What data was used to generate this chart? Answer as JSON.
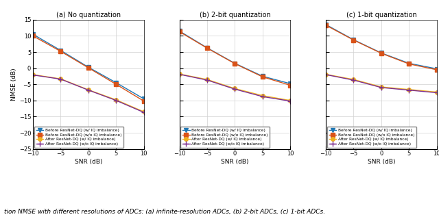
{
  "snr": [
    -10,
    -5,
    0,
    5,
    10
  ],
  "subplot1": {
    "title": "(a) No quantization",
    "before_w": [
      10.5,
      5.5,
      0.3,
      -4.5,
      -9.5
    ],
    "before_wo": [
      10.0,
      5.2,
      0.1,
      -5.0,
      -10.2
    ],
    "after_w": [
      -2.0,
      -3.3,
      -6.7,
      -9.8,
      -13.5
    ],
    "after_wo": [
      -2.1,
      -3.4,
      -6.8,
      -10.0,
      -13.7
    ]
  },
  "subplot2": {
    "title": "(b) 2-bit quantization",
    "before_w": [
      11.5,
      6.3,
      1.5,
      -2.5,
      -4.8
    ],
    "before_wo": [
      11.3,
      6.2,
      1.4,
      -2.7,
      -5.3
    ],
    "after_w": [
      -1.8,
      -3.5,
      -6.3,
      -8.5,
      -10.0
    ],
    "after_wo": [
      -1.9,
      -3.7,
      -6.5,
      -8.8,
      -10.2
    ]
  },
  "subplot3": {
    "title": "(c) 1-bit quantization",
    "before_w": [
      13.5,
      8.8,
      4.7,
      1.5,
      -0.2
    ],
    "before_wo": [
      13.3,
      8.7,
      4.6,
      1.3,
      -0.5
    ],
    "after_w": [
      -1.9,
      -3.5,
      -5.8,
      -6.6,
      -7.4
    ],
    "after_wo": [
      -2.0,
      -3.7,
      -6.0,
      -6.8,
      -7.6
    ]
  },
  "colors": {
    "blue": "#1f77b4",
    "orange": "#d95319",
    "yellow": "#edb120",
    "purple": "#7e2f8e"
  },
  "legend_labels": [
    "Before ResNet-DQ (w/ IQ imbalance)",
    "Before ResNet-DQ (w/o IQ imbalance)",
    "After ResNet-DQ (w/ IQ imbalance)",
    "After ResNet-DQ (w/o IQ imbalance)"
  ],
  "xlabel": "SNR (dB)",
  "ylabel": "NMSE (dB)",
  "ylim": [
    -25,
    15
  ],
  "yticks": [
    -25,
    -20,
    -15,
    -10,
    -5,
    0,
    5,
    10,
    15
  ],
  "xlim": [
    -10,
    10
  ],
  "xticks": [
    -10,
    -5,
    0,
    5,
    10
  ],
  "caption": "tion NMSE with different resolutions of ADCs: (a) infinite-resolution ADCs, (b) 2-bit ADCs, (c) 1-bit ADCs."
}
